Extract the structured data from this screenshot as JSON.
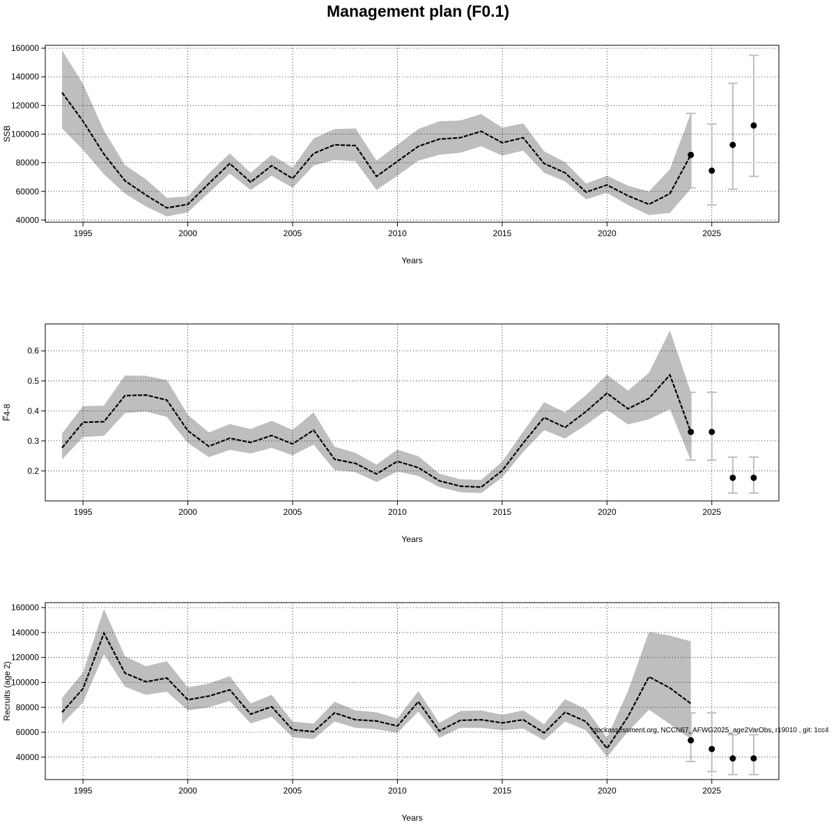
{
  "page_title": "Management plan (F0.1)",
  "watermark": "stockassessment.org, NCCN67_AFWG2025_age2VarObs, r19010 , git: 1cc4",
  "colors": {
    "band": "#bebebe",
    "line": "#000000",
    "errorbar": "#bebebe",
    "grid": "#000000"
  },
  "chart_data": [
    {
      "type": "line",
      "id": "ssb",
      "ylabel": "SSB",
      "xlabel": "Years",
      "xlim": [
        1993.2,
        2028.2
      ],
      "ylim": [
        38500,
        162000
      ],
      "xticks": [
        1995,
        2000,
        2005,
        2010,
        2015,
        2020,
        2025
      ],
      "yticks": [
        40000,
        60000,
        80000,
        100000,
        120000,
        140000,
        160000
      ],
      "x": [
        1994,
        1995,
        1996,
        1997,
        1998,
        1999,
        2000,
        2001,
        2002,
        2003,
        2004,
        2005,
        2006,
        2007,
        2008,
        2009,
        2010,
        2011,
        2012,
        2013,
        2014,
        2015,
        2016,
        2017,
        2018,
        2019,
        2020,
        2021,
        2022,
        2023,
        2024
      ],
      "estimate": [
        129000,
        109000,
        86000,
        67500,
        57500,
        48500,
        51000,
        65500,
        79500,
        66500,
        78000,
        69000,
        86500,
        92500,
        92000,
        70500,
        81000,
        91500,
        96500,
        97500,
        102000,
        94000,
        97500,
        79500,
        73000,
        59500,
        64500,
        57000,
        51000,
        58500,
        85500
      ],
      "lower": [
        104000,
        89000,
        72000,
        58500,
        49500,
        42500,
        45500,
        59000,
        72500,
        61000,
        71000,
        62500,
        78000,
        82000,
        81000,
        61000,
        71000,
        81500,
        85500,
        87000,
        91500,
        85000,
        88500,
        73000,
        67000,
        54500,
        59000,
        50500,
        43500,
        45000,
        62000
      ],
      "upper": [
        158500,
        135000,
        102500,
        78500,
        68500,
        55500,
        56500,
        72500,
        86500,
        73000,
        85500,
        76500,
        97000,
        103500,
        104000,
        81500,
        92500,
        103500,
        109000,
        109500,
        114000,
        104500,
        107500,
        88000,
        80500,
        65500,
        71000,
        64000,
        60000,
        75500,
        114500
      ],
      "forecast": {
        "x": [
          2024,
          2025,
          2026,
          2027
        ],
        "median": [
          85500,
          74500,
          92500,
          106000
        ],
        "low": [
          62500,
          50500,
          61500,
          70500
        ],
        "high": [
          114500,
          107000,
          135500,
          155000
        ]
      }
    },
    {
      "type": "line",
      "id": "fbar",
      "ylabel": "F̅4-8",
      "xlabel": "Years",
      "xlim": [
        1993.2,
        2028.2
      ],
      "ylim": [
        0.1,
        0.69
      ],
      "xticks": [
        1995,
        2000,
        2005,
        2010,
        2015,
        2020,
        2025
      ],
      "yticks": [
        0.2,
        0.3,
        0.4,
        0.5,
        0.6
      ],
      "x": [
        1994,
        1995,
        1996,
        1997,
        1998,
        1999,
        2000,
        2001,
        2002,
        2003,
        2004,
        2005,
        2006,
        2007,
        2008,
        2009,
        2010,
        2011,
        2012,
        2013,
        2014,
        2015,
        2016,
        2017,
        2018,
        2019,
        2020,
        2021,
        2022,
        2023,
        2024
      ],
      "estimate": [
        0.277,
        0.362,
        0.364,
        0.451,
        0.453,
        0.436,
        0.334,
        0.282,
        0.309,
        0.295,
        0.318,
        0.29,
        0.336,
        0.239,
        0.225,
        0.19,
        0.232,
        0.211,
        0.167,
        0.149,
        0.146,
        0.201,
        0.293,
        0.378,
        0.345,
        0.398,
        0.459,
        0.407,
        0.442,
        0.52,
        0.33
      ],
      "lower": [
        0.238,
        0.313,
        0.317,
        0.393,
        0.398,
        0.38,
        0.293,
        0.246,
        0.27,
        0.258,
        0.277,
        0.252,
        0.288,
        0.203,
        0.196,
        0.163,
        0.198,
        0.183,
        0.146,
        0.129,
        0.126,
        0.178,
        0.263,
        0.336,
        0.308,
        0.354,
        0.404,
        0.355,
        0.372,
        0.406,
        0.236
      ],
      "upper": [
        0.325,
        0.416,
        0.418,
        0.518,
        0.517,
        0.503,
        0.387,
        0.328,
        0.356,
        0.34,
        0.367,
        0.337,
        0.395,
        0.281,
        0.26,
        0.221,
        0.271,
        0.249,
        0.191,
        0.172,
        0.17,
        0.231,
        0.331,
        0.429,
        0.395,
        0.453,
        0.521,
        0.468,
        0.527,
        0.668,
        0.463
      ],
      "forecast": {
        "x": [
          2024,
          2025,
          2026,
          2027
        ],
        "median": [
          0.33,
          0.33,
          0.177,
          0.177
        ],
        "low": [
          0.236,
          0.236,
          0.126,
          0.126
        ],
        "high": [
          0.462,
          0.462,
          0.246,
          0.246
        ]
      }
    },
    {
      "type": "line",
      "id": "recruits",
      "ylabel": "Recruits (age 2)",
      "xlabel": "Years",
      "xlim": [
        1993.2,
        2028.2
      ],
      "ylim": [
        22000,
        164000
      ],
      "xticks": [
        1995,
        2000,
        2005,
        2010,
        2015,
        2020,
        2025
      ],
      "yticks": [
        40000,
        60000,
        80000,
        100000,
        120000,
        140000,
        160000
      ],
      "x": [
        1994,
        1995,
        1996,
        1997,
        1998,
        1999,
        2000,
        2001,
        2002,
        2003,
        2004,
        2005,
        2006,
        2007,
        2008,
        2009,
        2010,
        2011,
        2012,
        2013,
        2014,
        2015,
        2016,
        2017,
        2018,
        2019,
        2020,
        2021,
        2022,
        2023,
        2024
      ],
      "estimate": [
        76000,
        95000,
        139500,
        107500,
        100500,
        103500,
        86000,
        89000,
        94000,
        74500,
        80500,
        62000,
        60500,
        75500,
        70000,
        69000,
        65000,
        84500,
        61000,
        69500,
        70000,
        67500,
        70000,
        59500,
        76000,
        68500,
        47000,
        72500,
        104500,
        95500,
        83000
      ],
      "lower": [
        66500,
        84000,
        122500,
        96500,
        90000,
        92500,
        77500,
        80000,
        85000,
        67000,
        72500,
        56000,
        54500,
        68500,
        63500,
        62500,
        59500,
        76500,
        55500,
        63500,
        63500,
        61500,
        63000,
        53500,
        68500,
        61500,
        40000,
        60500,
        78000,
        66500,
        54500
      ],
      "upper": [
        87500,
        108000,
        159000,
        121000,
        113000,
        117000,
        96000,
        99000,
        105000,
        83000,
        90000,
        68500,
        67000,
        84500,
        77500,
        76000,
        71000,
        93000,
        67500,
        77000,
        77500,
        74000,
        77500,
        66500,
        86500,
        78500,
        55500,
        93000,
        140500,
        137500,
        133000
      ],
      "forecast": {
        "x": [
          2024,
          2025,
          2026,
          2027
        ],
        "median": [
          53500,
          46500,
          39000,
          39000
        ],
        "low": [
          36500,
          28500,
          26000,
          26000
        ],
        "high": [
          75500,
          75500,
          58000,
          58000
        ]
      }
    }
  ]
}
